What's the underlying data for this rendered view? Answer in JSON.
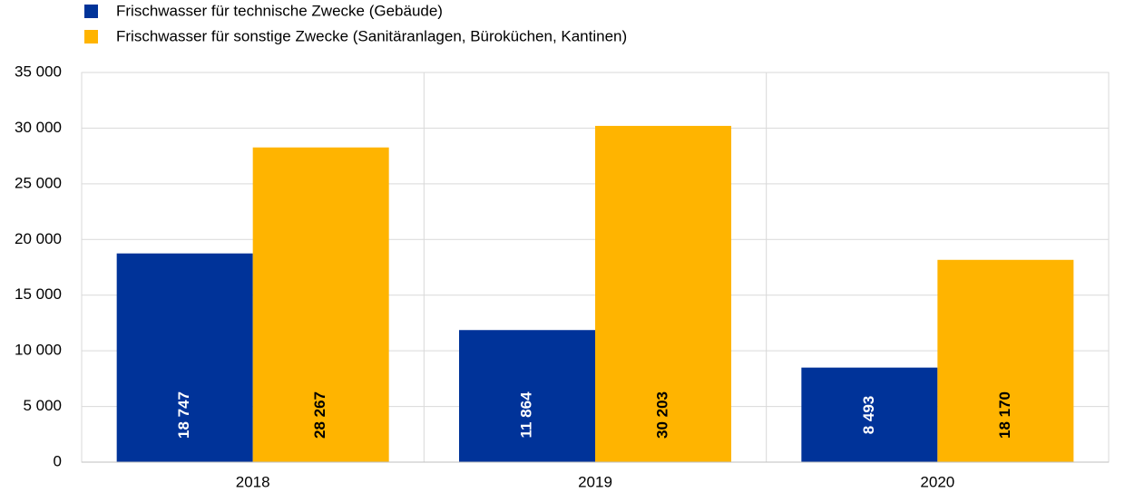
{
  "chart_data": {
    "type": "bar",
    "categories": [
      "2018",
      "2019",
      "2020"
    ],
    "series": [
      {
        "name": "Frischwasser für technische Zwecke (Gebäude)",
        "color": "#003399",
        "values": [
          18747,
          11864,
          8493
        ],
        "value_labels": [
          "18 747",
          "11 864",
          "8 493"
        ]
      },
      {
        "name": "Frischwasser für sonstige Zwecke (Sanitäranlagen, Büroküchen, Kantinen)",
        "color": "#ffb400",
        "values": [
          28267,
          30203,
          18170
        ],
        "value_labels": [
          "28 267",
          "30 203",
          "18 170"
        ]
      }
    ],
    "ylim": [
      0,
      35000
    ],
    "yticks": [
      0,
      {
        "value": 5000,
        "label": "5 000"
      },
      {
        "value": 10000,
        "label": "10 000"
      },
      {
        "value": 15000,
        "label": "15 000"
      },
      {
        "value": 20000,
        "label": "20 000"
      },
      {
        "value": 25000,
        "label": "25 000"
      },
      {
        "value": 30000,
        "label": "30 000"
      },
      {
        "value": 35000,
        "label": "35 000"
      }
    ],
    "grid": true
  }
}
